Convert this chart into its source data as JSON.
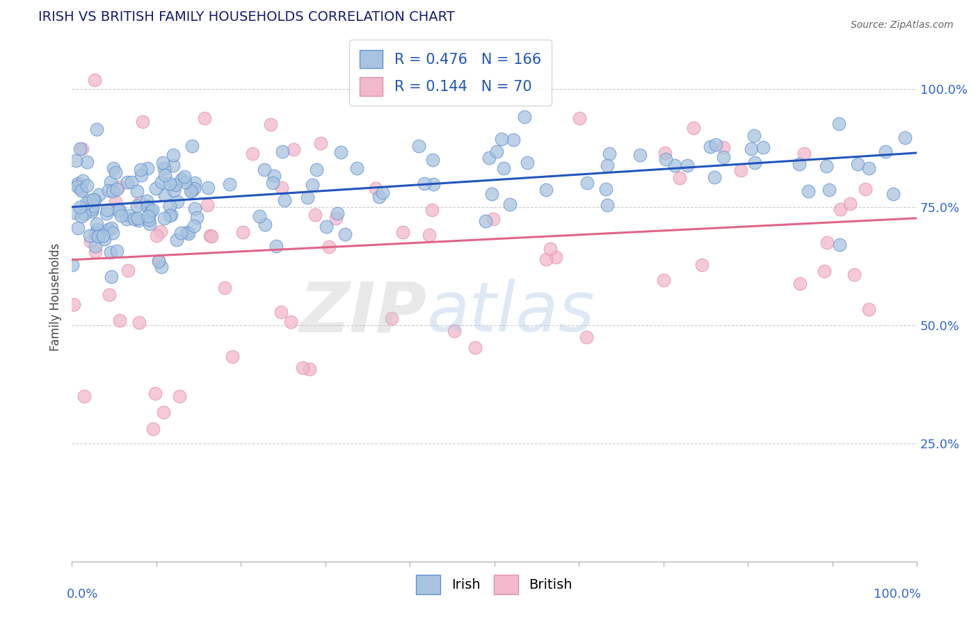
{
  "title": "IRISH VS BRITISH FAMILY HOUSEHOLDS CORRELATION CHART",
  "source": "Source: ZipAtlas.com",
  "ylabel": "Family Households",
  "title_color": "#1a1a6e",
  "source_color": "#666666",
  "background_color": "#ffffff",
  "irish_color": "#a8c4e0",
  "british_color": "#f2b8cc",
  "irish_edge_color": "#6090d0",
  "british_edge_color": "#e090a8",
  "irish_line_color": "#2255bb",
  "british_line_color": "#dd6688",
  "irish_R": 0.476,
  "irish_N": 166,
  "british_R": 0.144,
  "british_N": 70,
  "grid_color": "#cccccc",
  "ytick_color": "#3366cc",
  "xtick_color": "#3366cc",
  "legend_box_color": "#dddddd",
  "watermark_zip_color": "#d0d0d0",
  "watermark_atlas_color": "#b8cce4"
}
